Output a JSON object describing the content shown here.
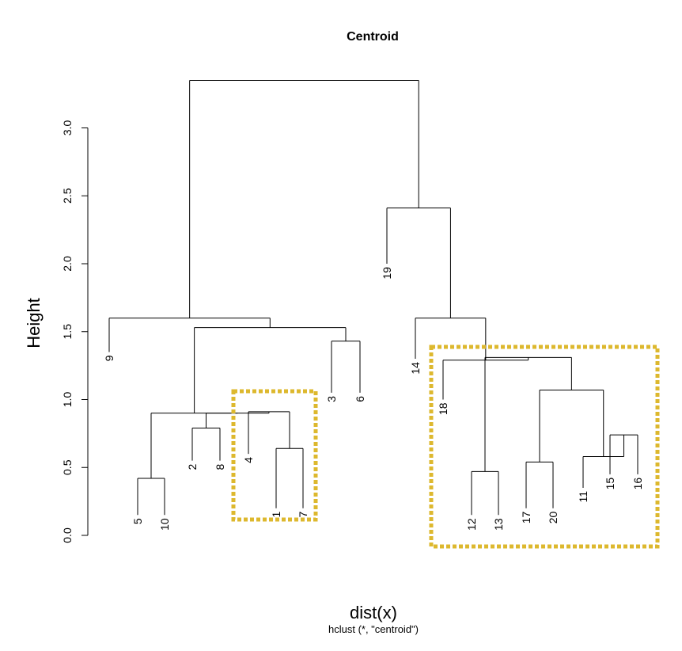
{
  "chart_data": {
    "type": "dendrogram",
    "title": "Centroid",
    "ylabel": "Height",
    "xlabel": "dist(x)",
    "sub": "hclust (*, \"centroid\")",
    "ylim": [
      0,
      3.5
    ],
    "yticks": [
      "0.0",
      "0.5",
      "1.0",
      "1.5",
      "2.0",
      "2.5",
      "3.0"
    ],
    "leaf_order": [
      "9",
      "5",
      "10",
      "2",
      "8",
      "4",
      "1",
      "7",
      "3",
      "6",
      "19",
      "14",
      "18",
      "12",
      "13",
      "17",
      "20",
      "11",
      "15",
      "16"
    ],
    "leaf_heights": [
      1.35,
      0.15,
      0.15,
      0.55,
      0.55,
      0.6,
      0.2,
      0.2,
      1.05,
      1.05,
      2.0,
      1.3,
      1.0,
      0.15,
      0.15,
      0.2,
      0.2,
      0.35,
      0.45,
      0.45
    ],
    "merges": [
      {
        "left": "5",
        "right": "10",
        "height": 0.42
      },
      {
        "left": "2",
        "right": "8",
        "height": 0.79
      },
      {
        "left": "1",
        "right": "7",
        "height": 0.64
      },
      {
        "left": "4",
        "right": "m3",
        "height": 0.91
      },
      {
        "left": "m2",
        "right": "m4",
        "height": 0.9
      },
      {
        "left": "m1",
        "right": "m5",
        "height": 0.9
      },
      {
        "left": "3",
        "right": "6",
        "height": 1.43
      },
      {
        "left": "m6",
        "right": "m7",
        "height": 1.53
      },
      {
        "left": "9",
        "right": "m8",
        "height": 1.6
      },
      {
        "left": "12",
        "right": "13",
        "height": 0.47
      },
      {
        "left": "17",
        "right": "20",
        "height": 0.54
      },
      {
        "left": "15",
        "right": "16",
        "height": 0.74
      },
      {
        "left": "11",
        "right": "m12",
        "height": 0.58
      },
      {
        "left": "m11",
        "right": "m13",
        "height": 1.07
      },
      {
        "left": "m10",
        "right": "m14",
        "height": 1.31
      },
      {
        "left": "18",
        "right": "m15",
        "height": 1.29
      },
      {
        "left": "14",
        "right": "m16",
        "height": 1.6
      },
      {
        "left": "19",
        "right": "m17",
        "height": 2.41
      },
      {
        "left": "m9",
        "right": "m18",
        "height": 3.35
      }
    ],
    "highlight_boxes": [
      {
        "label": "cluster-4-1-7",
        "color": "#ddb82e"
      },
      {
        "label": "cluster-18-to-16",
        "color": "#ddb82e"
      }
    ]
  }
}
